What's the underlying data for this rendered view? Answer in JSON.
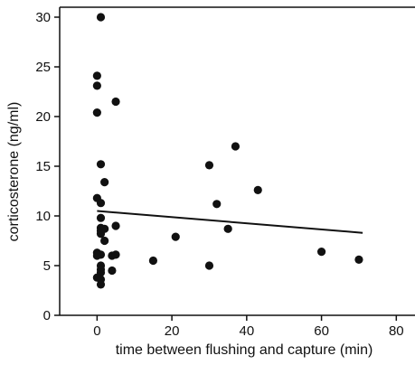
{
  "chart_data": {
    "type": "scatter",
    "title": "",
    "xlabel": "time between flushing and capture (min)",
    "ylabel": "corticosterone (ng/ml)",
    "xlim": [
      -10,
      85
    ],
    "ylim": [
      0,
      31
    ],
    "xticks": [
      0,
      20,
      40,
      60,
      80
    ],
    "yticks": [
      0,
      5,
      10,
      15,
      20,
      25,
      30
    ],
    "xtick_labels": [
      "0",
      "20",
      "40",
      "60",
      "80"
    ],
    "ytick_labels": [
      "0",
      "5",
      "10",
      "15",
      "20",
      "25",
      "30"
    ],
    "grid": false,
    "legend": "none",
    "colors": {
      "points": "#111111",
      "axis": "#111111",
      "trendline": "#111111"
    },
    "series": [
      {
        "x": [
          1,
          0,
          0,
          0,
          5,
          1,
          2,
          0,
          1,
          1,
          1,
          1,
          2,
          0,
          1,
          1,
          2,
          4,
          5,
          0,
          1,
          5,
          1,
          1,
          4,
          0,
          1,
          1,
          15,
          21,
          30,
          32,
          30,
          37,
          35,
          43,
          60,
          70
        ],
        "y": [
          30.0,
          24.1,
          23.1,
          20.4,
          21.5,
          15.2,
          13.4,
          11.8,
          11.3,
          9.8,
          8.8,
          8.5,
          8.7,
          6.3,
          6.1,
          8.2,
          7.5,
          6.0,
          6.1,
          6.0,
          5.0,
          9.0,
          4.6,
          4.3,
          4.5,
          3.8,
          3.6,
          3.1,
          5.5,
          7.9,
          15.1,
          11.2,
          5.0,
          17.0,
          8.7,
          12.6,
          6.4,
          5.6
        ]
      }
    ],
    "trendline": {
      "x": [
        0,
        71
      ],
      "y": [
        10.5,
        8.3
      ]
    }
  }
}
